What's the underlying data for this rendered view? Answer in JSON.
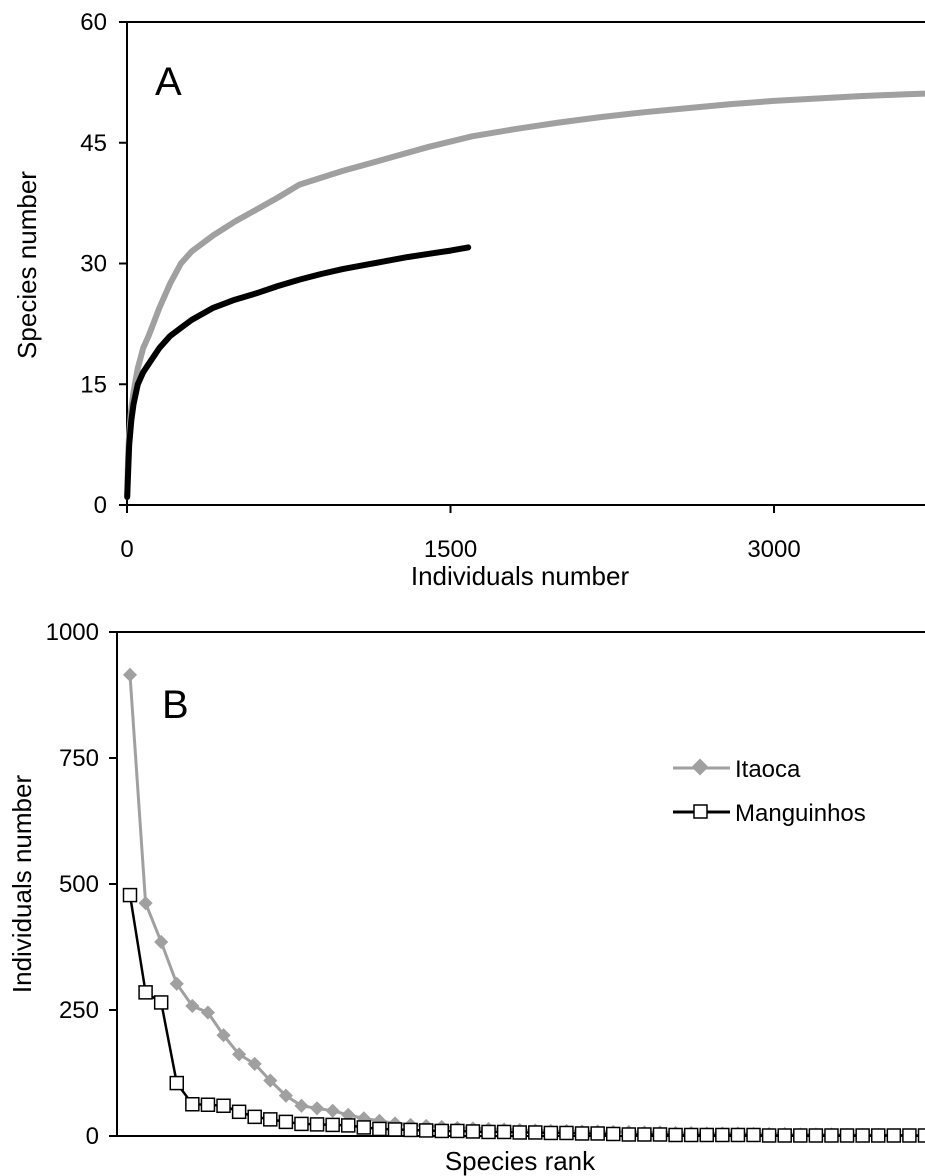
{
  "colors": {
    "itaoca": "#a0a0a0",
    "manguinhos": "#000000",
    "axis": "#000000"
  },
  "chart_data": [
    {
      "type": "line",
      "panel_label": "A",
      "xlabel": "Individuals number",
      "ylabel": "Species number",
      "xlim": [
        0,
        3700
      ],
      "ylim": [
        0,
        60
      ],
      "xticks": [
        0,
        1500,
        3000
      ],
      "yticks": [
        0,
        15,
        30,
        45,
        60
      ],
      "xtick_labels": [
        "0",
        "1500",
        "3000"
      ],
      "ytick_labels": [
        "0",
        "15",
        "30",
        "45",
        "60"
      ],
      "grid": false,
      "legend": "none",
      "series": [
        {
          "key": "itaoca",
          "x": [
            1,
            5,
            10,
            20,
            30,
            50,
            75,
            100,
            150,
            200,
            250,
            300,
            400,
            500,
            600,
            700,
            800,
            1000,
            1200,
            1400,
            1600,
            1800,
            2000,
            2200,
            2400,
            2600,
            2800,
            3000,
            3200,
            3400,
            3600,
            3700
          ],
          "y": [
            1,
            6,
            9,
            12,
            14,
            17,
            19.5,
            21,
            24.5,
            27.5,
            30,
            31.5,
            33.5,
            35.2,
            36.7,
            38.2,
            39.8,
            41.5,
            43,
            44.5,
            45.8,
            46.7,
            47.5,
            48.2,
            48.8,
            49.3,
            49.8,
            50.2,
            50.5,
            50.8,
            51,
            51.1
          ]
        },
        {
          "key": "manguinhos",
          "x": [
            1,
            5,
            10,
            20,
            30,
            50,
            75,
            100,
            150,
            200,
            250,
            300,
            400,
            500,
            600,
            700,
            800,
            900,
            1000,
            1100,
            1200,
            1300,
            1400,
            1500,
            1582
          ],
          "y": [
            1,
            4,
            7.5,
            10.5,
            12.5,
            15,
            16.5,
            17.5,
            19.5,
            21,
            22,
            23,
            24.5,
            25.5,
            26.3,
            27.2,
            28,
            28.7,
            29.3,
            29.8,
            30.3,
            30.8,
            31.2,
            31.6,
            32
          ]
        }
      ]
    },
    {
      "type": "line",
      "panel_label": "B",
      "xlabel": "Species rank",
      "ylabel": "Individuals number",
      "xlim": [
        0,
        52
      ],
      "ylim": [
        0,
        1000
      ],
      "yticks": [
        0,
        250,
        500,
        750,
        1000
      ],
      "ytick_labels": [
        "0",
        "250",
        "500",
        "750",
        "1000"
      ],
      "grid": false,
      "legend": "right-center",
      "series": [
        {
          "key": "itaoca",
          "name": "Itaoca",
          "marker": "diamond",
          "x": [
            1,
            2,
            3,
            4,
            5,
            6,
            7,
            8,
            9,
            10,
            11,
            12,
            13,
            14,
            15,
            16,
            17,
            18,
            19,
            20,
            21,
            22,
            23,
            24,
            25,
            26,
            27,
            28,
            29,
            30,
            31,
            32,
            33,
            34,
            35,
            36,
            37,
            38,
            39,
            40,
            41,
            42,
            43,
            44,
            45,
            46,
            47,
            48,
            49,
            50,
            51
          ],
          "y": [
            915,
            462,
            385,
            302,
            258,
            245,
            200,
            162,
            143,
            110,
            80,
            60,
            55,
            50,
            42,
            35,
            30,
            25,
            22,
            20,
            18,
            16,
            15,
            14,
            13,
            12,
            11,
            10,
            10,
            9,
            9,
            8,
            8,
            7,
            7,
            6,
            6,
            5,
            5,
            5,
            4,
            4,
            4,
            3,
            3,
            3,
            2,
            2,
            2,
            1,
            1
          ]
        },
        {
          "key": "manguinhos",
          "name": "Manguinhos",
          "marker": "open-square",
          "x": [
            1,
            2,
            3,
            4,
            5,
            6,
            7,
            8,
            9,
            10,
            11,
            12,
            13,
            14,
            15,
            16,
            17,
            18,
            19,
            20,
            21,
            22,
            23,
            24,
            25,
            26,
            27,
            28,
            29,
            30,
            31,
            32
          ],
          "y": [
            478,
            285,
            265,
            105,
            63,
            62,
            60,
            48,
            38,
            33,
            28,
            24,
            23,
            22,
            21,
            17,
            14,
            13,
            12,
            11,
            10,
            10,
            9,
            8,
            8,
            7,
            7,
            6,
            6,
            5,
            5,
            4
          ]
        },
        {
          "key": "manguinhos_tail",
          "marker": "open-square",
          "x": [
            33,
            34,
            35,
            36,
            37,
            38,
            39,
            40,
            41,
            42,
            43,
            44,
            45,
            46,
            47,
            48,
            49,
            50,
            51,
            52
          ],
          "y": [
            3,
            3,
            3,
            2,
            2,
            2,
            2,
            2,
            2,
            1,
            1,
            1,
            1,
            1,
            1,
            1,
            1,
            1,
            1,
            1
          ]
        }
      ]
    }
  ]
}
